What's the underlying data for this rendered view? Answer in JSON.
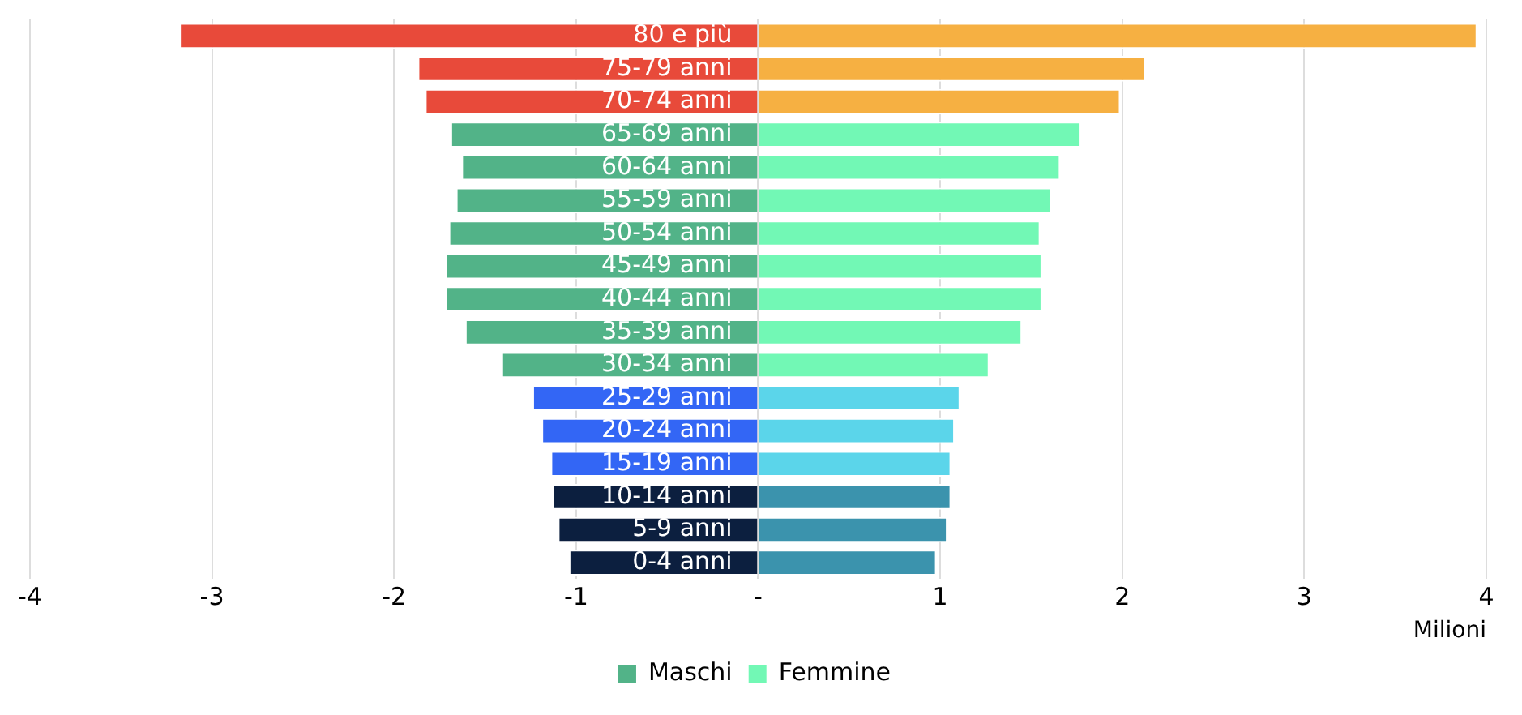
{
  "chart_data": {
    "type": "bar",
    "orientation": "horizontal",
    "stacked": true,
    "xlabel": "Milioni",
    "categories": [
      "80 e più",
      "75-79 anni",
      "70-74 anni",
      "65-69 anni",
      "60-64 anni",
      "55-59 anni",
      "50-54 anni",
      "45-49 anni",
      "40-44 anni",
      "35-39 anni",
      "30-34 anni",
      "25-29 anni",
      "20-24 anni",
      "15-19 anni",
      "10-14 anni",
      "5-9 anni",
      "0-4 anni"
    ],
    "series": [
      {
        "name": "Maschi",
        "color": "#52b388",
        "colors": [
          "#e84a3a",
          "#e84a3a",
          "#e84a3a",
          "#52b388",
          "#52b388",
          "#52b388",
          "#52b388",
          "#52b388",
          "#52b388",
          "#52b388",
          "#52b388",
          "#3366f5",
          "#3366f5",
          "#3366f5",
          "#0c1f3f",
          "#0c1f3f",
          "#0c1f3f"
        ],
        "values": [
          -3.18,
          -1.87,
          -1.83,
          -1.69,
          -1.63,
          -1.66,
          -1.7,
          -1.72,
          -1.72,
          -1.61,
          -1.41,
          -1.24,
          -1.19,
          -1.14,
          -1.13,
          -1.1,
          -1.04
        ]
      },
      {
        "name": "Femmine",
        "color": "#72f8b5",
        "colors": [
          "#f6b042",
          "#f6b042",
          "#f6b042",
          "#72f8b5",
          "#72f8b5",
          "#72f8b5",
          "#72f8b5",
          "#72f8b5",
          "#72f8b5",
          "#72f8b5",
          "#72f8b5",
          "#5bd5ea",
          "#5bd5ea",
          "#5bd5ea",
          "#3b93ad",
          "#3b93ad",
          "#3b93ad"
        ],
        "values": [
          3.95,
          2.13,
          1.99,
          1.77,
          1.66,
          1.61,
          1.55,
          1.56,
          1.56,
          1.45,
          1.27,
          1.11,
          1.08,
          1.06,
          1.06,
          1.04,
          0.98
        ]
      }
    ],
    "xlim": [
      -4,
      4
    ],
    "xticks": [
      -4,
      -3,
      -2,
      -1,
      {
        "value": 0,
        "label": "-"
      },
      1,
      2,
      3,
      4
    ],
    "grid": "x",
    "legend": "bottom"
  }
}
